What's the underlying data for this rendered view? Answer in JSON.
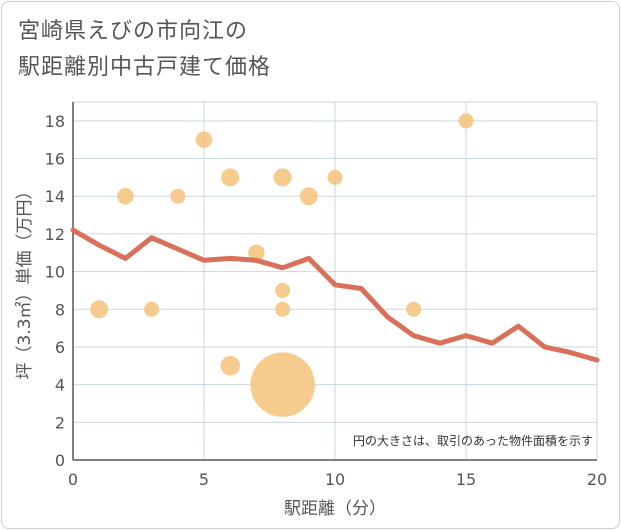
{
  "title_line1": "宮崎県えびの市向江の",
  "title_line2": "駅距離別中古戸建て価格",
  "chart_data": {
    "type": "scatter",
    "xlabel": "駅距離（分）",
    "ylabel": "坪（3.3㎡）単価（万円）",
    "xlim": [
      0,
      20
    ],
    "ylim": [
      0,
      19
    ],
    "xticks": [
      0,
      5,
      10,
      15,
      20
    ],
    "yticks": [
      0,
      2,
      4,
      6,
      8,
      10,
      12,
      14,
      16,
      18
    ],
    "annotation": "円の大きさは、取引のあった物件面積を示す",
    "colors": {
      "points": "#f5c27a",
      "line": "#d9705a",
      "grid": "#c9d6e6",
      "axis": "#555555"
    },
    "points": [
      {
        "x": 1,
        "y": 8,
        "size": 1.2
      },
      {
        "x": 2,
        "y": 14,
        "size": 1.1
      },
      {
        "x": 3,
        "y": 8,
        "size": 1.0
      },
      {
        "x": 4,
        "y": 14,
        "size": 1.0
      },
      {
        "x": 5,
        "y": 17,
        "size": 1.1
      },
      {
        "x": 6,
        "y": 15,
        "size": 1.2
      },
      {
        "x": 6,
        "y": 5,
        "size": 1.3
      },
      {
        "x": 7,
        "y": 11,
        "size": 1.1
      },
      {
        "x": 8,
        "y": 15,
        "size": 1.2
      },
      {
        "x": 8,
        "y": 9,
        "size": 1.0
      },
      {
        "x": 8,
        "y": 8,
        "size": 1.0
      },
      {
        "x": 8,
        "y": 4,
        "size": 4.3
      },
      {
        "x": 9,
        "y": 14,
        "size": 1.2
      },
      {
        "x": 10,
        "y": 15,
        "size": 1.0
      },
      {
        "x": 13,
        "y": 8,
        "size": 1.0
      },
      {
        "x": 15,
        "y": 18,
        "size": 1.0
      }
    ],
    "line": {
      "x": [
        0,
        1,
        2,
        3,
        4,
        5,
        6,
        7,
        8,
        9,
        10,
        11,
        12,
        13,
        14,
        15,
        16,
        17,
        18,
        19,
        20
      ],
      "y": [
        12.2,
        11.4,
        10.7,
        11.8,
        11.2,
        10.6,
        10.7,
        10.6,
        10.2,
        10.7,
        9.3,
        9.1,
        7.6,
        6.6,
        6.2,
        6.6,
        6.2,
        7.1,
        6.0,
        5.7,
        5.3
      ]
    }
  }
}
